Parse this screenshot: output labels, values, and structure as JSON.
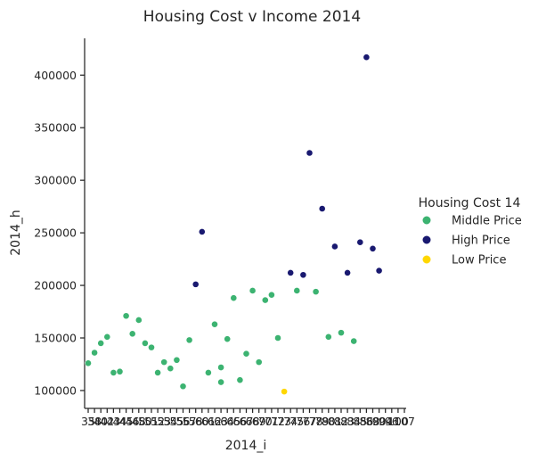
{
  "chart_data": {
    "type": "scatter",
    "title": "Housing Cost v Income 2014",
    "xlabel": "2014_i",
    "ylabel": "2014_h",
    "ylim": [
      83000,
      435000
    ],
    "y_ticks": [
      "100000",
      "150000",
      "200000",
      "250000",
      "300000",
      "350000",
      "400000"
    ],
    "x_tick_labels": [
      "35",
      "38",
      "40",
      "42",
      "43",
      "44",
      "45",
      "46",
      "48",
      "50",
      "51",
      "52",
      "53",
      "54",
      "55",
      "56",
      "57",
      "58",
      "60",
      "61",
      "62",
      "63",
      "64",
      "65",
      "66",
      "67",
      "68",
      "69",
      "70",
      "71",
      "72",
      "73",
      "74",
      "75",
      "76",
      "77",
      "78",
      "79",
      "80",
      "81",
      "82",
      "83",
      "84",
      "85",
      "86",
      "88",
      "90",
      "94",
      "96",
      "100",
      "107"
    ],
    "x_tick_rendered_text": "35ø¥Ø⁄Ø⁄Ø∂ØØØ¥ØØ0ØØ⁄ØØØØØ⁄ØØ⁄Ø¤Ø∂ØØØ¥ØØØØØØØØØØ⁄ØØ⁄ØØØØØ0ØØØØØØØ0ØØØØØØØØØØØØØØØØ¥ØØØ⁄ØØØØØØØØØØØ⁄Ø¥ØØØ¥ØØØØØØØØØØØØØØØØØØØØ¥ØØ0ØØØØØ⁄ØØ¥¤ØØØØØ0070",
    "x_tick_display": "35                                                    070",
    "grid": false,
    "legend": {
      "title": "Housing Cost 14",
      "placement": "right",
      "entries": [
        {
          "label": "Middle Price",
          "color": "#3cb371"
        },
        {
          "label": "High Price",
          "color": "#191970"
        },
        {
          "label": "Low Price",
          "color": "#ffd700"
        }
      ]
    },
    "series": [
      {
        "name": "Middle Price",
        "color": "#3cb371",
        "points": [
          [
            0,
            126000
          ],
          [
            1,
            136000
          ],
          [
            2,
            145000
          ],
          [
            3,
            151000
          ],
          [
            4,
            117000
          ],
          [
            5,
            118000
          ],
          [
            6,
            171000
          ],
          [
            7,
            154000
          ],
          [
            8,
            167000
          ],
          [
            9,
            145000
          ],
          [
            10,
            141000
          ],
          [
            11,
            117000
          ],
          [
            12,
            127000
          ],
          [
            13,
            121000
          ],
          [
            14,
            129000
          ],
          [
            15,
            104000
          ],
          [
            16,
            148000
          ],
          [
            19,
            117000
          ],
          [
            20,
            163000
          ],
          [
            21,
            108000
          ],
          [
            21,
            122000
          ],
          [
            22,
            149000
          ],
          [
            23,
            188000
          ],
          [
            24,
            110000
          ],
          [
            25,
            135000
          ],
          [
            26,
            195000
          ],
          [
            27,
            127000
          ],
          [
            28,
            186000
          ],
          [
            29,
            191000
          ],
          [
            30,
            150000
          ],
          [
            33,
            195000
          ],
          [
            36,
            194000
          ],
          [
            38,
            151000
          ],
          [
            40,
            155000
          ],
          [
            42,
            147000
          ]
        ]
      },
      {
        "name": "High Price",
        "color": "#191970",
        "points": [
          [
            17,
            201000
          ],
          [
            18,
            251000
          ],
          [
            32,
            212000
          ],
          [
            34,
            210000
          ],
          [
            35,
            326000
          ],
          [
            37,
            273000
          ],
          [
            39,
            237000
          ],
          [
            41,
            212000
          ],
          [
            43,
            241000
          ],
          [
            44,
            417000
          ],
          [
            45,
            235000
          ],
          [
            46,
            214000
          ]
        ]
      },
      {
        "name": "Low Price",
        "color": "#ffd700",
        "points": [
          [
            31,
            99000
          ]
        ]
      }
    ]
  }
}
